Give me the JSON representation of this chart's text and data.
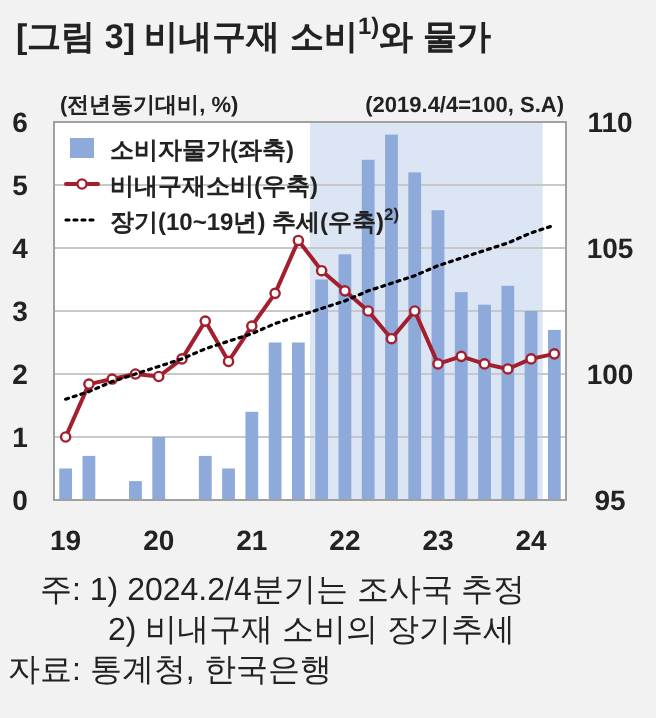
{
  "chart_data": {
    "type": "bar",
    "title": "[그림 3] 비내구재 소비$^{1)}$와 물가",
    "ylabel": "(전년동기대비, %)",
    "y2label": "(2019.4/4=100, S.A)",
    "x": [
      2019,
      2019.25,
      2019.5,
      2019.75,
      2020,
      2020.25,
      2020.5,
      2020.75,
      2021,
      2021.25,
      2021.5,
      2021.75,
      2022,
      2022.25,
      2022.5,
      2022.75,
      2023,
      2023.25,
      2023.5,
      2023.75,
      2024,
      2024.25
    ],
    "xlim": [
      2018.875,
      2024.375
    ],
    "xticks": [
      {
        "value": 2019,
        "label": "19"
      },
      {
        "value": 2020,
        "label": "20"
      },
      {
        "value": 2021,
        "label": "21"
      },
      {
        "value": 2022,
        "label": "22"
      },
      {
        "value": 2023,
        "label": "23"
      },
      {
        "value": 2024,
        "label": "24"
      }
    ],
    "ylim": [
      0,
      6
    ],
    "yticks": [
      0,
      1,
      2,
      3,
      4,
      5,
      6
    ],
    "y2lim": [
      95,
      110
    ],
    "y2ticks": [
      95,
      100,
      105,
      110
    ],
    "series": [
      {
        "name": "소비자물가(좌축)",
        "color": "#8eaadb",
        "values": [
          0.5,
          0.7,
          0,
          0.3,
          1.0,
          0,
          0.7,
          0.5,
          1.4,
          2.5,
          2.5,
          3.5,
          3.9,
          5.4,
          5.8,
          5.2,
          4.6,
          3.3,
          3.1,
          3.4,
          3.0,
          2.7
        ]
      },
      {
        "name": "비내구재소비(우축)",
        "type": "line",
        "axis": "y2",
        "color": "#a31f2e",
        "marker": "circle",
        "line_style": "solid",
        "values": [
          97.5,
          99.6,
          99.8,
          100.0,
          99.9,
          100.6,
          102.1,
          100.5,
          101.9,
          103.2,
          105.3,
          104.1,
          103.3,
          102.5,
          101.4,
          102.5,
          100.4,
          100.7,
          100.4,
          100.2,
          100.6,
          100.8
        ]
      },
      {
        "name": "장기(10~19년) 추세(우축)$^{2)}$",
        "type": "line",
        "axis": "y2",
        "color": "#000000",
        "marker": "none",
        "line_style": "dotted",
        "values": [
          99.0,
          99.3,
          99.7,
          100.0,
          100.3,
          100.6,
          101.0,
          101.3,
          101.6,
          102.0,
          102.3,
          102.6,
          102.9,
          103.3,
          103.6,
          103.9,
          104.3,
          104.6,
          104.9,
          105.2,
          105.6,
          105.9
        ]
      }
    ],
    "bands": [
      {
        "axis": "x",
        "from": 2021.625,
        "to": 2024.125,
        "color": "#dbe5f3"
      }
    ],
    "grid": "y",
    "legend": "top left",
    "annotations": [
      "주: 1) 2024.2/4분기는 조사국 추정",
      "2) 비내구재 소비의 장기추세",
      "자료: 통계청, 한국은행"
    ]
  }
}
